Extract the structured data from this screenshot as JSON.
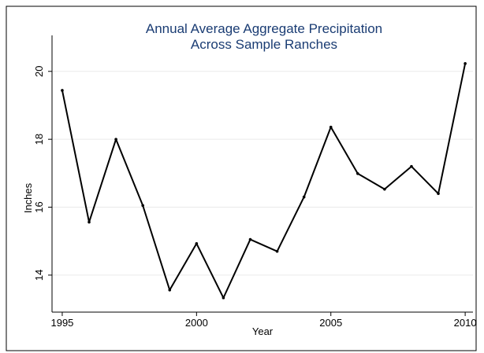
{
  "chart_data": {
    "type": "line",
    "title": [
      "Annual Average Aggregate Precipitation",
      "Across Sample Ranches"
    ],
    "x_label": "Year",
    "y_label": "Inches",
    "x": [
      1995,
      1996,
      1997,
      1998,
      1999,
      2000,
      2001,
      2002,
      2003,
      2004,
      2005,
      2006,
      2007,
      2008,
      2009,
      2010
    ],
    "series": [
      {
        "color": "#000000",
        "values": [
          19.44,
          15.56,
          18.0,
          16.05,
          13.56,
          14.93,
          13.33,
          15.05,
          14.7,
          16.3,
          18.36,
          16.99,
          16.53,
          17.2,
          16.4,
          20.23
        ]
      }
    ],
    "xlim": [
      1994.62,
      2010.29
    ],
    "xticks": [
      1995,
      2000,
      2005,
      2010
    ],
    "ylim": [
      12.91,
      21.06
    ],
    "yticks": [
      14,
      16,
      18,
      20
    ],
    "grid": true
  }
}
